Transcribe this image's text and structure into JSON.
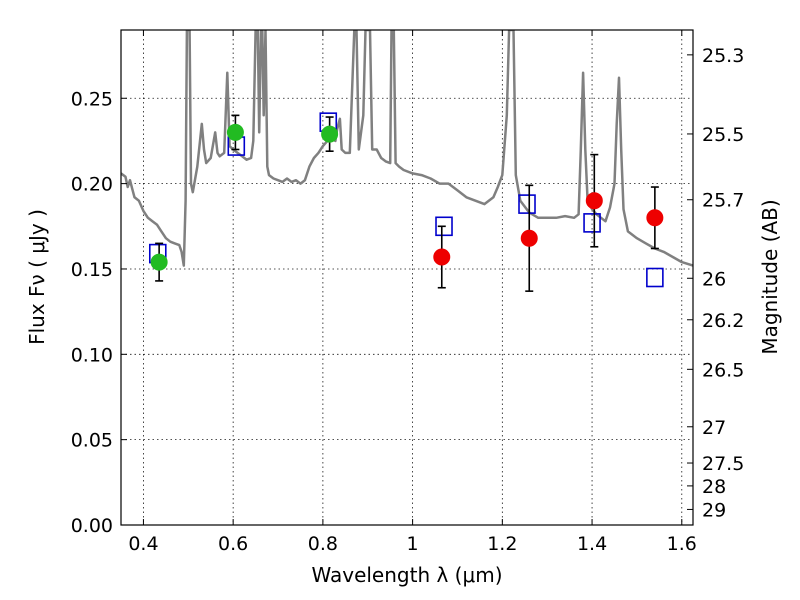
{
  "chart_data": {
    "type": "scatter",
    "xlabel": "Wavelength  λ (μm)",
    "ylabel": "Flux  Fν  ( μJy )",
    "y2label": "Magnitude (AB)",
    "xlim": [
      0.35,
      1.625
    ],
    "ylim": [
      0.0,
      0.29
    ],
    "grid": true,
    "x_ticks": [
      {
        "value": 0.4,
        "label": "0.4"
      },
      {
        "value": 0.6,
        "label": "0.6"
      },
      {
        "value": 0.8,
        "label": "0.8"
      },
      {
        "value": 1.0,
        "label": "1"
      },
      {
        "value": 1.2,
        "label": "1.2"
      },
      {
        "value": 1.4,
        "label": "1.4"
      },
      {
        "value": 1.6,
        "label": "1.6"
      }
    ],
    "y_ticks": [
      {
        "value": 0.0,
        "label": "0.00"
      },
      {
        "value": 0.05,
        "label": "0.05"
      },
      {
        "value": 0.1,
        "label": "0.10"
      },
      {
        "value": 0.15,
        "label": "0.15"
      },
      {
        "value": 0.2,
        "label": "0.20"
      },
      {
        "value": 0.25,
        "label": "0.25"
      }
    ],
    "y2_ticks": [
      {
        "value": 25.3,
        "label": "25.3"
      },
      {
        "value": 25.5,
        "label": "25.5"
      },
      {
        "value": 25.7,
        "label": "25.7"
      },
      {
        "value": 26.0,
        "label": "26"
      },
      {
        "value": 26.2,
        "label": "26.2"
      },
      {
        "value": 26.5,
        "label": "26.5"
      },
      {
        "value": 27.0,
        "label": "27"
      },
      {
        "value": 27.5,
        "label": "27.5"
      },
      {
        "value": 28.0,
        "label": "28"
      },
      {
        "value": 29.0,
        "label": "29"
      }
    ],
    "model_spectrum": {
      "color": "#808080",
      "points": [
        [
          0.35,
          0.206
        ],
        [
          0.36,
          0.204
        ],
        [
          0.365,
          0.198
        ],
        [
          0.37,
          0.202
        ],
        [
          0.375,
          0.197
        ],
        [
          0.38,
          0.192
        ],
        [
          0.39,
          0.19
        ],
        [
          0.4,
          0.184
        ],
        [
          0.41,
          0.18
        ],
        [
          0.42,
          0.178
        ],
        [
          0.43,
          0.176
        ],
        [
          0.44,
          0.172
        ],
        [
          0.45,
          0.168
        ],
        [
          0.46,
          0.166
        ],
        [
          0.47,
          0.165
        ],
        [
          0.48,
          0.164
        ],
        [
          0.485,
          0.16
        ],
        [
          0.49,
          0.152
        ],
        [
          0.494,
          0.19
        ],
        [
          0.497,
          0.29
        ],
        [
          0.5,
          0.29
        ],
        [
          0.503,
          0.29
        ],
        [
          0.506,
          0.2
        ],
        [
          0.51,
          0.195
        ],
        [
          0.52,
          0.21
        ],
        [
          0.53,
          0.235
        ],
        [
          0.535,
          0.22
        ],
        [
          0.54,
          0.212
        ],
        [
          0.55,
          0.215
        ],
        [
          0.56,
          0.23
        ],
        [
          0.565,
          0.218
        ],
        [
          0.57,
          0.216
        ],
        [
          0.58,
          0.218
        ],
        [
          0.587,
          0.265
        ],
        [
          0.592,
          0.222
        ],
        [
          0.6,
          0.22
        ],
        [
          0.61,
          0.218
        ],
        [
          0.62,
          0.216
        ],
        [
          0.63,
          0.214
        ],
        [
          0.64,
          0.215
        ],
        [
          0.645,
          0.225
        ],
        [
          0.65,
          0.29
        ],
        [
          0.655,
          0.29
        ],
        [
          0.658,
          0.23
        ],
        [
          0.662,
          0.29
        ],
        [
          0.665,
          0.29
        ],
        [
          0.668,
          0.24
        ],
        [
          0.672,
          0.29
        ],
        [
          0.676,
          0.21
        ],
        [
          0.68,
          0.205
        ],
        [
          0.69,
          0.203
        ],
        [
          0.7,
          0.202
        ],
        [
          0.71,
          0.201
        ],
        [
          0.72,
          0.203
        ],
        [
          0.73,
          0.201
        ],
        [
          0.74,
          0.202
        ],
        [
          0.75,
          0.2
        ],
        [
          0.76,
          0.202
        ],
        [
          0.77,
          0.21
        ],
        [
          0.78,
          0.215
        ],
        [
          0.79,
          0.218
        ],
        [
          0.8,
          0.222
        ],
        [
          0.81,
          0.225
        ],
        [
          0.82,
          0.226
        ],
        [
          0.828,
          0.225
        ],
        [
          0.832,
          0.232
        ],
        [
          0.838,
          0.238
        ],
        [
          0.842,
          0.22
        ],
        [
          0.85,
          0.218
        ],
        [
          0.86,
          0.218
        ],
        [
          0.87,
          0.29
        ],
        [
          0.875,
          0.29
        ],
        [
          0.88,
          0.22
        ],
        [
          0.89,
          0.24
        ],
        [
          0.895,
          0.29
        ],
        [
          0.905,
          0.29
        ],
        [
          0.91,
          0.22
        ],
        [
          0.92,
          0.22
        ],
        [
          0.93,
          0.215
        ],
        [
          0.94,
          0.213
        ],
        [
          0.95,
          0.212
        ],
        [
          0.953,
          0.29
        ],
        [
          0.958,
          0.29
        ],
        [
          0.962,
          0.212
        ],
        [
          0.97,
          0.21
        ],
        [
          0.98,
          0.208
        ],
        [
          1.0,
          0.206
        ],
        [
          1.02,
          0.205
        ],
        [
          1.04,
          0.203
        ],
        [
          1.06,
          0.2
        ],
        [
          1.08,
          0.2
        ],
        [
          1.1,
          0.196
        ],
        [
          1.12,
          0.192
        ],
        [
          1.14,
          0.19
        ],
        [
          1.16,
          0.188
        ],
        [
          1.18,
          0.192
        ],
        [
          1.19,
          0.198
        ],
        [
          1.2,
          0.205
        ],
        [
          1.21,
          0.24
        ],
        [
          1.215,
          0.29
        ],
        [
          1.225,
          0.29
        ],
        [
          1.23,
          0.205
        ],
        [
          1.24,
          0.19
        ],
        [
          1.26,
          0.183
        ],
        [
          1.28,
          0.18
        ],
        [
          1.3,
          0.18
        ],
        [
          1.32,
          0.18
        ],
        [
          1.34,
          0.181
        ],
        [
          1.36,
          0.18
        ],
        [
          1.37,
          0.182
        ],
        [
          1.375,
          0.22
        ],
        [
          1.38,
          0.265
        ],
        [
          1.385,
          0.22
        ],
        [
          1.39,
          0.19
        ],
        [
          1.4,
          0.185
        ],
        [
          1.41,
          0.182
        ],
        [
          1.42,
          0.18
        ],
        [
          1.43,
          0.178
        ],
        [
          1.44,
          0.186
        ],
        [
          1.45,
          0.2
        ],
        [
          1.455,
          0.235
        ],
        [
          1.46,
          0.262
        ],
        [
          1.465,
          0.22
        ],
        [
          1.47,
          0.185
        ],
        [
          1.48,
          0.172
        ],
        [
          1.5,
          0.168
        ],
        [
          1.52,
          0.165
        ],
        [
          1.54,
          0.162
        ],
        [
          1.56,
          0.16
        ],
        [
          1.58,
          0.157
        ],
        [
          1.6,
          0.154
        ],
        [
          1.625,
          0.152
        ]
      ]
    },
    "series": [
      {
        "marker": "circle",
        "color": "#22bb22",
        "points": [
          {
            "x": 0.435,
            "y": 0.154,
            "yerr": 0.011
          },
          {
            "x": 0.605,
            "y": 0.23,
            "yerr": 0.01
          },
          {
            "x": 0.815,
            "y": 0.229,
            "yerr": 0.01
          }
        ]
      },
      {
        "marker": "circle",
        "color": "#ee0000",
        "points": [
          {
            "x": 1.065,
            "y": 0.157,
            "yerr": 0.018
          },
          {
            "x": 1.26,
            "y": 0.168,
            "yerr": 0.031
          },
          {
            "x": 1.405,
            "y": 0.19,
            "yerr": 0.027
          },
          {
            "x": 1.54,
            "y": 0.18,
            "yerr": 0.018
          }
        ]
      },
      {
        "marker": "open-square",
        "color": "#0000cc",
        "points": [
          {
            "x": 0.432,
            "y": 0.159
          },
          {
            "x": 0.607,
            "y": 0.222
          },
          {
            "x": 0.812,
            "y": 0.236
          },
          {
            "x": 1.07,
            "y": 0.175
          },
          {
            "x": 1.255,
            "y": 0.188
          },
          {
            "x": 1.4,
            "y": 0.177
          },
          {
            "x": 1.54,
            "y": 0.145
          }
        ]
      }
    ]
  }
}
